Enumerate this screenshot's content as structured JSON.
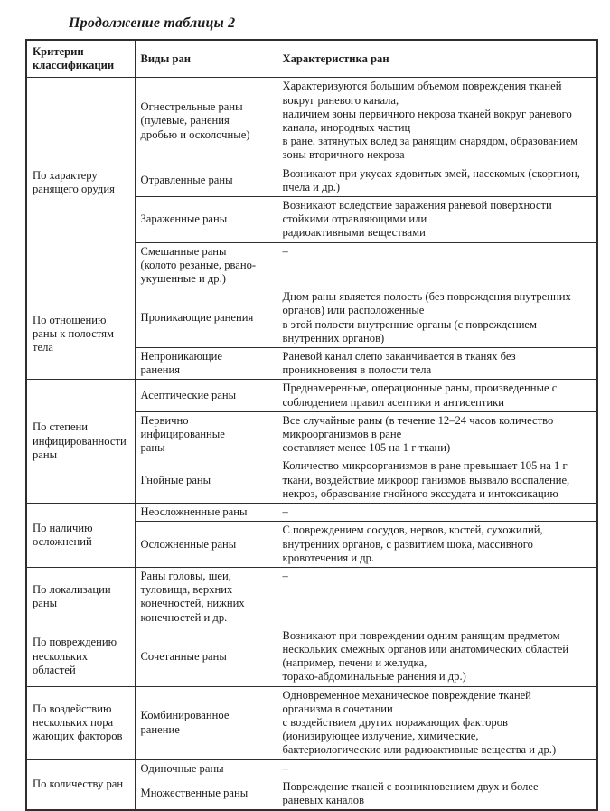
{
  "caption": "Продолжение таблицы 2",
  "table": {
    "headers": {
      "criteria": "Критерии\nклассификации",
      "types": "Виды ран",
      "characteristics": "Характеристика ран"
    },
    "groups": [
      {
        "criterion": "По характеру\nранящего орудия",
        "rows": [
          {
            "type": "Огнестрельные раны\n(пулевые, ранения\nдробью и осколочные)",
            "characteristic": "Характеризуются большим объемом повреждения тканей\nвокруг раневого канала,\nналичием зоны первичного некроза тканей вокруг раневого\nканала, инородных частиц\nв ране, затянутых вслед за ранящим снарядом, образованием\nзоны вторичного некроза"
          },
          {
            "type": "Отравленные раны",
            "characteristic": "Возникают при укусах ядовитых змей, насекомых (скорпион,\nпчела и др.)"
          },
          {
            "type": "Зараженные раны",
            "characteristic": "Возникают вследствие заражения раневой поверхности\nстойкими отравляющими или\nрадиоактивными веществами"
          },
          {
            "type": "Смешанные раны\n(колото резаные, рвано-\nукушенные и др.)",
            "characteristic": "–"
          }
        ]
      },
      {
        "criterion": "По отношению\nраны к полостям\nтела",
        "rows": [
          {
            "type": "Проникающие ранения",
            "characteristic": "Дном раны является полость (без повреждения внутренних\nорганов) или расположенные\nв этой полости внутренние органы (с повреждением\nвнутренних органов)"
          },
          {
            "type": "Непроникающие\nранения",
            "characteristic": "Раневой канал слепо заканчивается в тканях без\nпроникновения в полости тела"
          }
        ]
      },
      {
        "criterion": "По степени\nинфицированности\nраны",
        "rows": [
          {
            "type": "Асептические раны",
            "characteristic": "Преднамеренные, операционные раны, произведенные с\nсоблюдением правил асептики и антисептики"
          },
          {
            "type": "Первично\nинфицированные\nраны",
            "characteristic": "Все случайные раны (в течение 12–24 часов количество\nмикроорганизмов в ране\nсоставляет менее 105 на 1 г ткани)"
          },
          {
            "type": "Гнойные раны",
            "characteristic": "Количество микроорганизмов в ране превышает 105 на 1 г\nткани, воздействие микроор ганизмов вызвало воспаление,\nнекроз, образование гнойного экссудата и интоксикацию"
          }
        ]
      },
      {
        "criterion": "По наличию\nосложнений",
        "rows": [
          {
            "type": "Неосложненные раны",
            "characteristic": "–"
          },
          {
            "type": "Осложненные раны",
            "characteristic": "С повреждением сосудов, нервов, костей, сухожилий,\nвнутренних органов, с развитием шока, массивного\nкровотечения и др."
          }
        ]
      },
      {
        "criterion": "По локализации\nраны",
        "rows": [
          {
            "type": "Раны головы, шеи,\nтуловища, верхних\nконечностей, нижних\nконечностей и др.",
            "characteristic": "–"
          }
        ]
      },
      {
        "criterion": "По повреждению\nнескольких\nобластей",
        "rows": [
          {
            "type": "Сочетанные раны",
            "characteristic": "Возникают при повреждении одним ранящим предметом\nнескольких смежных органов или анатомических областей\n(например, печени и желудка,\nторако-абдоминальные ранения и др.)"
          }
        ]
      },
      {
        "criterion": "По воздействию\nнескольких пора\nжающих факторов",
        "rows": [
          {
            "type": "Комбинированное\nранение",
            "characteristic": "Одновременное механическое повреждение тканей\nорганизма в сочетании\nс воздействием других поражающих факторов\n(ионизирующее излучение, химические,\nбактериологические или радиоактивные вещества и др.)"
          }
        ]
      },
      {
        "criterion": "По количеству ран",
        "rows": [
          {
            "type": "Одиночные раны",
            "characteristic": "–"
          },
          {
            "type": "Множественные раны",
            "characteristic": "Повреждение тканей с возникновением двух и более\nраневых каналов"
          }
        ]
      }
    ]
  }
}
